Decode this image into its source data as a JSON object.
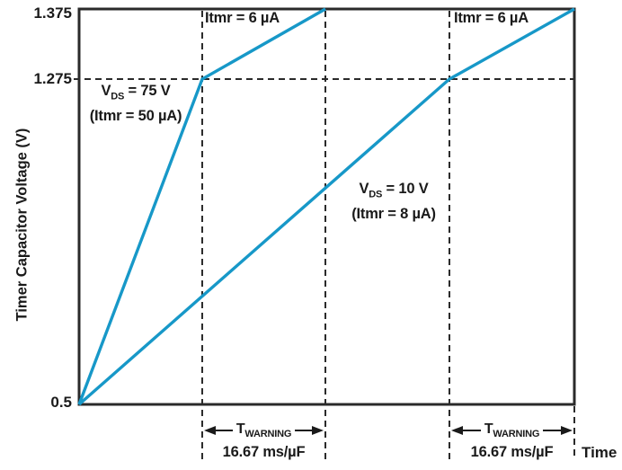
{
  "figure": {
    "background": "#ffffff",
    "axis_color": "#2a2a2a",
    "text_color": "#1a1a1a",
    "curve_color": "#1798c8"
  },
  "chart_data": {
    "type": "line",
    "title": "",
    "xlabel": "Time",
    "ylabel": "Timer Capacitor Voltage (V)",
    "x_axis": {
      "label": "Time",
      "numeric_scale_shown": false
    },
    "y_axis": {
      "label": "Timer Capacitor Voltage (V)",
      "unit": "V",
      "not_to_scale": true,
      "ticks": [
        {
          "label": "1.375",
          "value": 1.375,
          "frac": 1.0
        },
        {
          "label": "1.275",
          "value": 1.275,
          "frac": 0.8227
        },
        {
          "label": "0.5",
          "value": 0.5,
          "frac": 0.0
        }
      ]
    },
    "series": [
      {
        "name": "VDS = 75 V (Itmr = 50 µA), Itmr = 6 µA above 1.275 V",
        "color": "#1798c8",
        "points": [
          {
            "x_frac": 0.0,
            "v": 0.5
          },
          {
            "x_frac": 0.2486,
            "v": 1.275
          },
          {
            "x_frac": 0.4973,
            "v": 1.375
          }
        ]
      },
      {
        "name": "VDS = 10 V (Itmr = 8 µA), Itmr = 6 µA above 1.275 V",
        "color": "#1798c8",
        "points": [
          {
            "x_frac": 0.0,
            "v": 0.5
          },
          {
            "x_frac": 0.7477,
            "v": 1.275
          },
          {
            "x_frac": 1.0,
            "v": 1.375
          }
        ]
      }
    ],
    "reference_lines": {
      "horizontal": [
        {
          "v": 1.275,
          "style": "dashed"
        }
      ],
      "vertical": [
        {
          "x_frac": 0.2486,
          "span": "plot-and-below"
        },
        {
          "x_frac": 0.4973,
          "span": "plot-and-below"
        },
        {
          "x_frac": 0.7477,
          "span": "plot-and-below"
        },
        {
          "x_frac": 1.0,
          "span": "below-axis-only"
        }
      ]
    },
    "annotations": {
      "itmr_left": "Itmr = 6 µA",
      "itmr_right": "Itmr = 6 µA",
      "vds75": {
        "sym": "V",
        "sub": "DS",
        "rest": " = 75 V",
        "line2": "(Itmr = 50 µA)"
      },
      "vds10": {
        "sym": "V",
        "sub": "DS",
        "rest": " = 10 V",
        "line2": "(Itmr = 8 µA)"
      },
      "twarning_left": {
        "sym": "T",
        "sub": "WARNING",
        "rate": "16.67 ms/µF"
      },
      "twarning_right": {
        "sym": "T",
        "sub": "WARNING",
        "rate": "16.67 ms/µF"
      }
    },
    "legend": "none",
    "grid": "off"
  }
}
